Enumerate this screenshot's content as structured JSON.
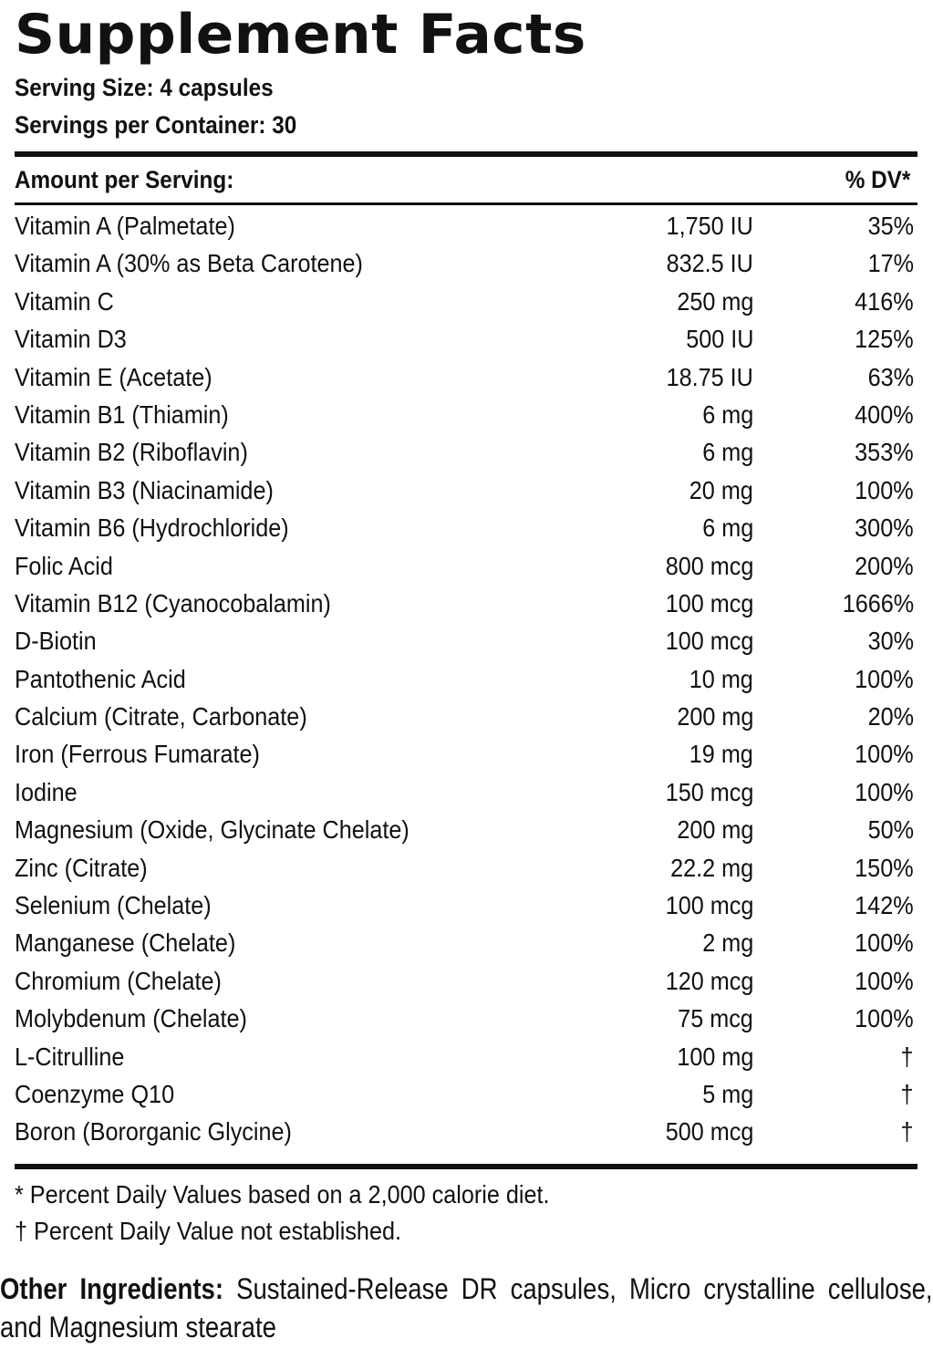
{
  "title": "Supplement Facts",
  "serving_size": "Serving Size: 4 capsules",
  "servings_per_container": "Servings per Container: 30",
  "amount_header": "Amount per Serving:",
  "dv_header": "% DV*",
  "nutrients": [
    {
      "name": "Vitamin A (Palmetate)",
      "amount": "1,750 IU",
      "dv": "35%"
    },
    {
      "name": "Vitamin A (30% as Beta Carotene)",
      "amount": "832.5 IU",
      "dv": "17%"
    },
    {
      "name": "Vitamin C",
      "amount": "250 mg",
      "dv": "416%"
    },
    {
      "name": "Vitamin D3",
      "amount": "500 IU",
      "dv": "125%"
    },
    {
      "name": "Vitamin E (Acetate)",
      "amount": "18.75 IU",
      "dv": "63%"
    },
    {
      "name": "Vitamin B1 (Thiamin)",
      "amount": "6 mg",
      "dv": "400%"
    },
    {
      "name": "Vitamin B2 (Riboflavin)",
      "amount": "6 mg",
      "dv": "353%"
    },
    {
      "name": "Vitamin B3 (Niacinamide)",
      "amount": "20 mg",
      "dv": "100%"
    },
    {
      "name": "Vitamin B6 (Hydrochloride)",
      "amount": "6 mg",
      "dv": "300%"
    },
    {
      "name": "Folic Acid",
      "amount": "800 mcg",
      "dv": "200%"
    },
    {
      "name": "Vitamin B12 (Cyanocobalamin)",
      "amount": "100 mcg",
      "dv": "1666%"
    },
    {
      "name": "D-Biotin",
      "amount": "100 mcg",
      "dv": "30%"
    },
    {
      "name": "Pantothenic Acid",
      "amount": "10 mg",
      "dv": "100%"
    },
    {
      "name": "Calcium (Citrate, Carbonate)",
      "amount": "200 mg",
      "dv": "20%"
    },
    {
      "name": "Iron (Ferrous Fumarate)",
      "amount": "19 mg",
      "dv": "100%"
    },
    {
      "name": "Iodine",
      "amount": "150 mcg",
      "dv": "100%"
    },
    {
      "name": "Magnesium (Oxide, Glycinate Chelate)",
      "amount": "200 mg",
      "dv": "50%"
    },
    {
      "name": "Zinc (Citrate)",
      "amount": "22.2 mg",
      "dv": "150%"
    },
    {
      "name": "Selenium (Chelate)",
      "amount": "100 mcg",
      "dv": "142%"
    },
    {
      "name": "Manganese (Chelate)",
      "amount": "2 mg",
      "dv": "100%"
    },
    {
      "name": "Chromium (Chelate)",
      "amount": "120 mcg",
      "dv": "100%"
    },
    {
      "name": "Molybdenum (Chelate)",
      "amount": "75 mcg",
      "dv": "100%"
    },
    {
      "name": "L-Citrulline",
      "amount": "100 mg",
      "dv": "†"
    },
    {
      "name": "Coenzyme Q10",
      "amount": "5 mg",
      "dv": "†"
    },
    {
      "name": "Boron (Bororganic Glycine)",
      "amount": "500 mcg",
      "dv": "†"
    }
  ],
  "footnotes": [
    "* Percent Daily Values based on a 2,000 calorie diet.",
    "† Percent Daily Value not established."
  ],
  "other_ingredients": {
    "label": "Other Ingredients:",
    "text": "Sustained-Release DR capsules, Micro crystalline cellulose, and Magnesium stearate"
  }
}
